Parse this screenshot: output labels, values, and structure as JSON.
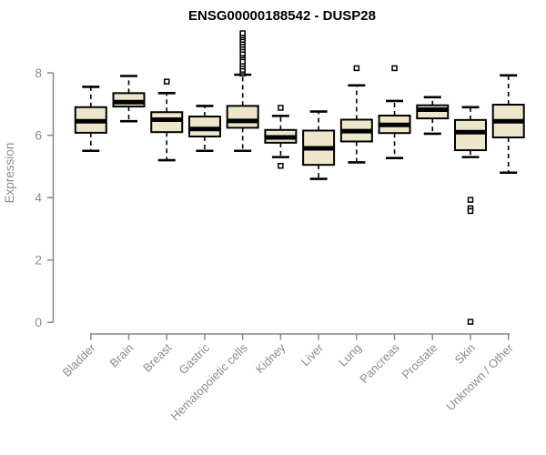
{
  "chart_data": {
    "type": "box",
    "title": "ENSG00000188542 - DUSP28",
    "xlabel": "",
    "ylabel": "Expression",
    "ylim": [
      0,
      9.4
    ],
    "yticks": [
      0,
      2,
      4,
      6,
      8
    ],
    "grid": false,
    "legend": "none",
    "categories": [
      "Bladder",
      "Brain",
      "Breast",
      "Gastric",
      "Hematopoietic cells",
      "Kidney",
      "Liver",
      "Lung",
      "Pancreas",
      "Prostate",
      "Skin",
      "Unknown / Other"
    ],
    "boxes": [
      {
        "category": "Bladder",
        "whisker_low": 5.5,
        "q1": 6.08,
        "median": 6.45,
        "q3": 6.9,
        "whisker_high": 7.55,
        "outliers": []
      },
      {
        "category": "Brain",
        "whisker_low": 6.45,
        "q1": 6.92,
        "median": 7.06,
        "q3": 7.35,
        "whisker_high": 7.9,
        "outliers": []
      },
      {
        "category": "Breast",
        "whisker_low": 5.2,
        "q1": 6.1,
        "median": 6.5,
        "q3": 6.74,
        "whisker_high": 7.35,
        "outliers": [
          7.72
        ]
      },
      {
        "category": "Gastric",
        "whisker_low": 5.5,
        "q1": 5.96,
        "median": 6.2,
        "q3": 6.6,
        "whisker_high": 6.94,
        "outliers": []
      },
      {
        "category": "Hematopoietic cells",
        "whisker_low": 5.5,
        "q1": 6.24,
        "median": 6.46,
        "q3": 6.94,
        "whisker_high": 7.94,
        "outliers": [
          7.98,
          8.04,
          8.1,
          8.2,
          8.28,
          8.36,
          8.5,
          8.56,
          8.62,
          8.74,
          8.82,
          8.9,
          8.98,
          9.06,
          9.14,
          9.2,
          9.27
        ]
      },
      {
        "category": "Kidney",
        "whisker_low": 5.3,
        "q1": 5.76,
        "median": 5.93,
        "q3": 6.17,
        "whisker_high": 6.62,
        "outliers": [
          6.88,
          5.02
        ]
      },
      {
        "category": "Liver",
        "whisker_low": 4.6,
        "q1": 5.05,
        "median": 5.58,
        "q3": 6.15,
        "whisker_high": 6.76,
        "outliers": []
      },
      {
        "category": "Lung",
        "whisker_low": 5.13,
        "q1": 5.8,
        "median": 6.13,
        "q3": 6.5,
        "whisker_high": 7.6,
        "outliers": [
          8.15
        ]
      },
      {
        "category": "Pancreas",
        "whisker_low": 5.27,
        "q1": 6.07,
        "median": 6.33,
        "q3": 6.63,
        "whisker_high": 7.1,
        "outliers": [
          8.15
        ]
      },
      {
        "category": "Prostate",
        "whisker_low": 6.05,
        "q1": 6.54,
        "median": 6.82,
        "q3": 6.96,
        "whisker_high": 7.22,
        "outliers": []
      },
      {
        "category": "Skin",
        "whisker_low": 5.3,
        "q1": 5.52,
        "median": 6.1,
        "q3": 6.49,
        "whisker_high": 6.9,
        "outliers": [
          3.93,
          3.66,
          3.57,
          0.02
        ]
      },
      {
        "category": "Unknown / Other",
        "whisker_low": 4.8,
        "q1": 5.93,
        "median": 6.45,
        "q3": 6.98,
        "whisker_high": 7.92,
        "outliers": []
      }
    ],
    "colors": {
      "box_fill": "#EDE6CB",
      "box_stroke": "#000000",
      "median": "#000000",
      "axis": "#888888",
      "tick_text": "#8c8c8c",
      "title_text": "#000000",
      "background": "#ffffff"
    }
  }
}
